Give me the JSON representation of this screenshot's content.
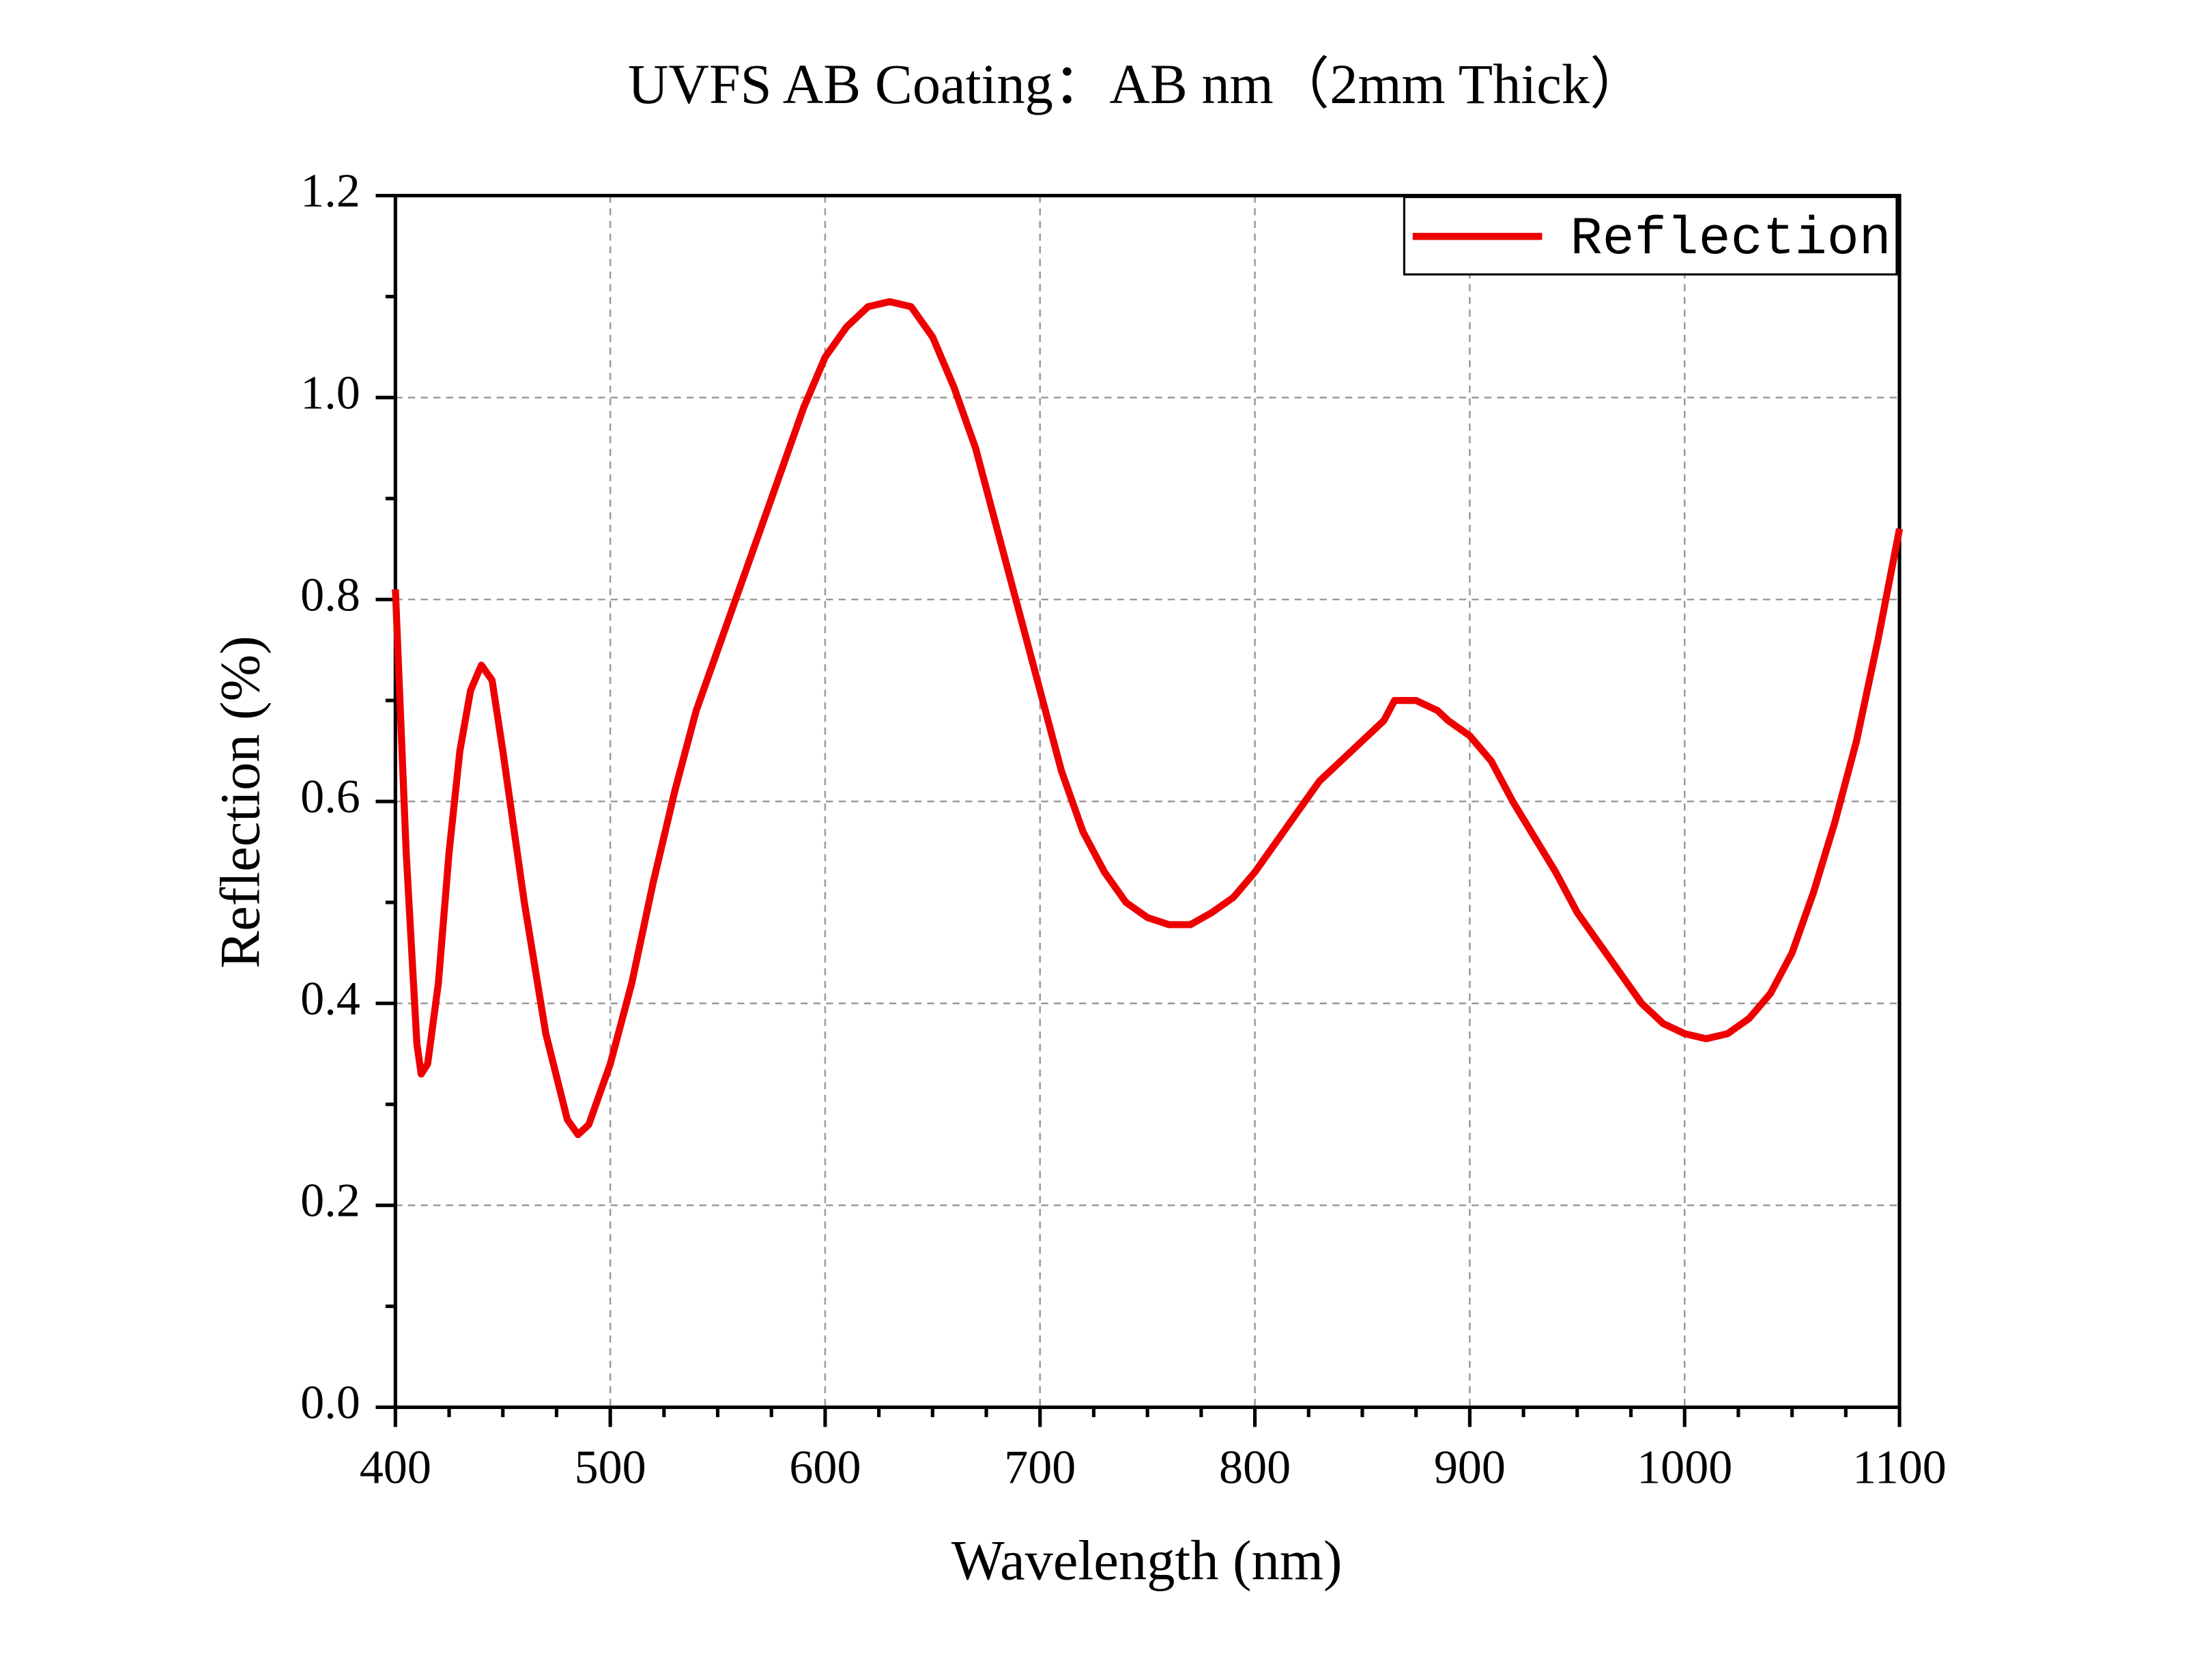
{
  "chart_data": {
    "type": "line",
    "title": "UVFS AB Coating：AB nm（2mm Thick）",
    "x_label": "Wavelength (nm)",
    "y_label": "Reflection (%)",
    "x": [
      400,
      405,
      410,
      412,
      415,
      420,
      425,
      430,
      435,
      440,
      445,
      450,
      460,
      470,
      480,
      485,
      490,
      500,
      510,
      520,
      530,
      540,
      550,
      560,
      570,
      580,
      590,
      600,
      610,
      620,
      630,
      640,
      650,
      660,
      670,
      680,
      690,
      700,
      710,
      720,
      730,
      740,
      750,
      760,
      770,
      780,
      790,
      800,
      810,
      820,
      830,
      840,
      850,
      860,
      865,
      870,
      875,
      880,
      885,
      890,
      900,
      910,
      920,
      930,
      940,
      950,
      960,
      970,
      980,
      990,
      1000,
      1010,
      1020,
      1030,
      1040,
      1050,
      1060,
      1070,
      1080,
      1090,
      1100
    ],
    "series": [
      {
        "name": "Reflection",
        "color": "#ee0000",
        "values": [
          0.81,
          0.55,
          0.36,
          0.33,
          0.34,
          0.42,
          0.55,
          0.65,
          0.71,
          0.735,
          0.72,
          0.65,
          0.5,
          0.37,
          0.285,
          0.27,
          0.28,
          0.34,
          0.42,
          0.52,
          0.61,
          0.69,
          0.75,
          0.81,
          0.87,
          0.93,
          0.99,
          1.04,
          1.07,
          1.09,
          1.095,
          1.09,
          1.06,
          1.01,
          0.95,
          0.87,
          0.79,
          0.71,
          0.63,
          0.57,
          0.53,
          0.5,
          0.485,
          0.478,
          0.478,
          0.49,
          0.505,
          0.53,
          0.56,
          0.59,
          0.62,
          0.64,
          0.66,
          0.68,
          0.7,
          0.7,
          0.7,
          0.695,
          0.69,
          0.68,
          0.665,
          0.64,
          0.6,
          0.565,
          0.53,
          0.49,
          0.46,
          0.43,
          0.4,
          0.38,
          0.37,
          0.365,
          0.37,
          0.385,
          0.41,
          0.45,
          0.51,
          0.58,
          0.66,
          0.76,
          0.87
        ]
      }
    ],
    "xlim": [
      400,
      1100
    ],
    "ylim": [
      0,
      1.2
    ],
    "xticks": [
      400,
      500,
      600,
      700,
      800,
      900,
      1000,
      1100
    ],
    "yticks": [
      {
        "value": 0,
        "label": "0.0"
      },
      0.2,
      0.4,
      0.6,
      0.8,
      {
        "value": 1,
        "label": "1.0"
      },
      1.2
    ],
    "grid": true,
    "legend": "upper right"
  }
}
